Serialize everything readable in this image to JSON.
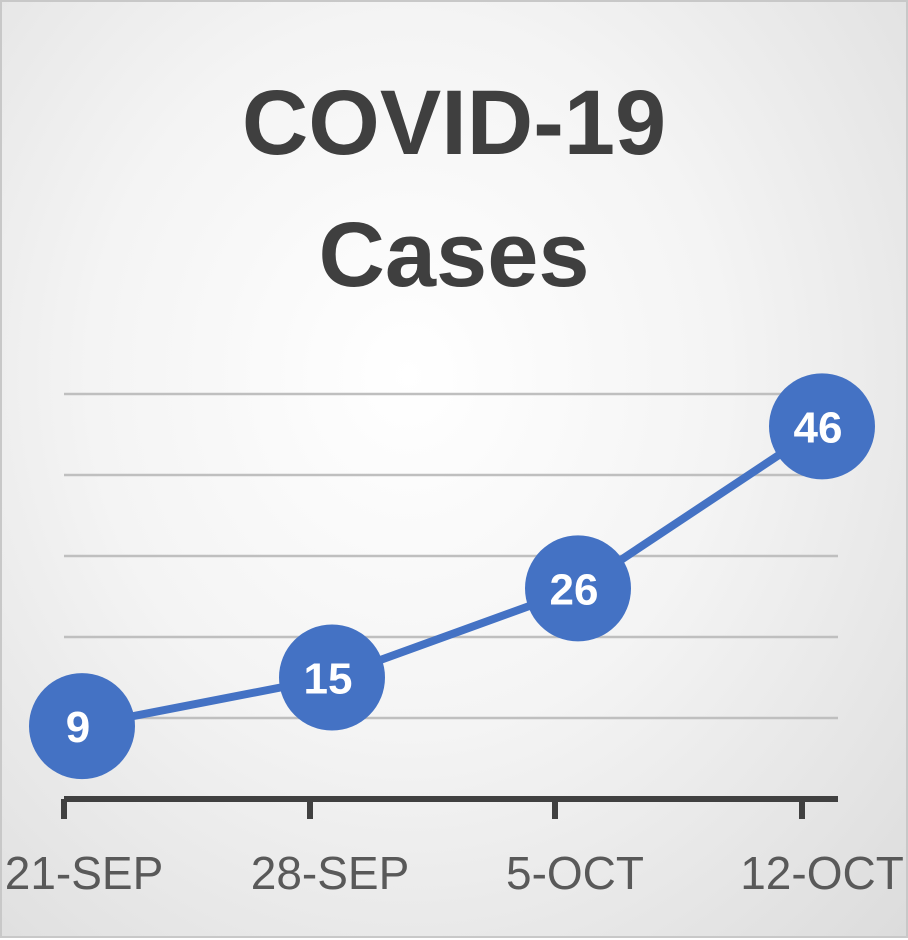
{
  "chart_data": {
    "type": "line",
    "title_lines": [
      "COVID-19",
      "Cases"
    ],
    "categories": [
      "21-SEP",
      "28-SEP",
      "5-OCT",
      "12-OCT"
    ],
    "series": [
      {
        "values": [
          9,
          15,
          26,
          46
        ]
      }
    ],
    "ylim": [
      0,
      50
    ],
    "grid": true,
    "legend": "none",
    "data_labels": true,
    "colors": {
      "series": "#4472c4",
      "gridline": "#bfbfbf",
      "axis": "#404040",
      "title": "#3f3f3f",
      "tick_label": "#595959",
      "data_label": "#ffffff"
    }
  }
}
